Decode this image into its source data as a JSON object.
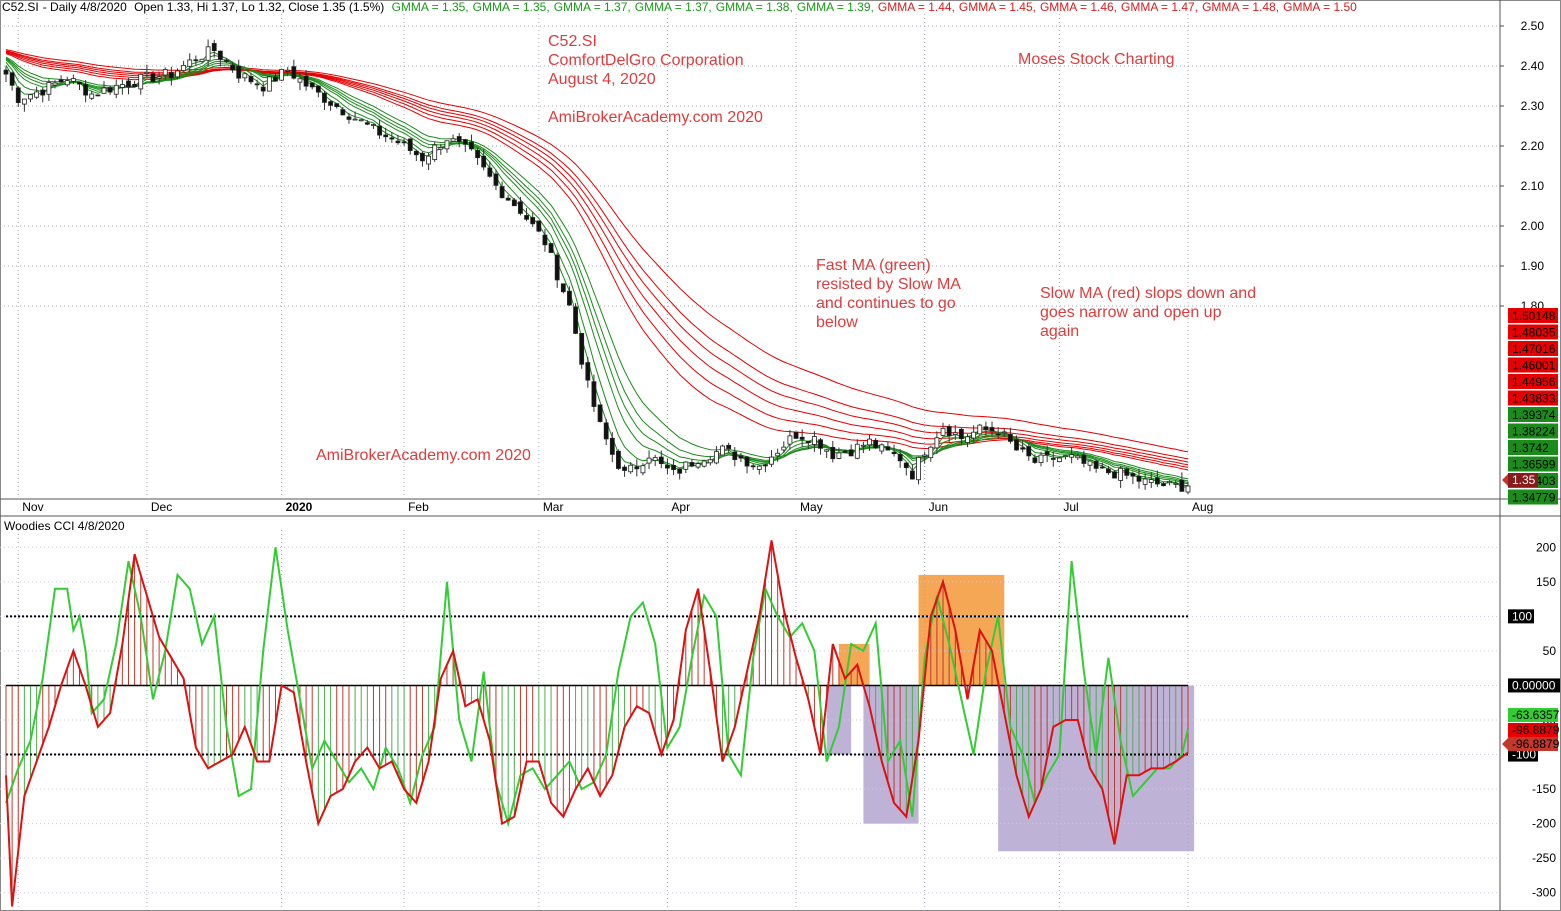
{
  "header": {
    "ticker": "C52.SI",
    "period": "Daily 4/8/2020",
    "ohlc": "Open 1.33, Hi 1.37, Lo 1.32, Close 1.35 (1.5%)",
    "gmma": [
      {
        "text": "GMMA = 1.35,",
        "color": "#1a9a1a"
      },
      {
        "text": "GMMA = 1.35,",
        "color": "#1a9a1a"
      },
      {
        "text": "GMMA = 1.37,",
        "color": "#1a9a1a"
      },
      {
        "text": "GMMA = 1.37,",
        "color": "#1a9a1a"
      },
      {
        "text": "GMMA = 1.38,",
        "color": "#1a9a1a"
      },
      {
        "text": "GMMA = 1.39,",
        "color": "#1a9a1a"
      },
      {
        "text": "GMMA = 1.44,",
        "color": "#d42020"
      },
      {
        "text": "GMMA = 1.45,",
        "color": "#d42020"
      },
      {
        "text": "GMMA = 1.46,",
        "color": "#d42020"
      },
      {
        "text": "GMMA = 1.47,",
        "color": "#d42020"
      },
      {
        "text": "GMMA = 1.48,",
        "color": "#d42020"
      },
      {
        "text": "GMMA = 1.50",
        "color": "#d42020"
      }
    ]
  },
  "annotations": {
    "title_block": [
      "C52.SI",
      "ComfortDelGro Corporation",
      "August 4, 2020"
    ],
    "site1": "AmiBrokerAcademy.com  2020",
    "site2": "AmiBrokerAcademy.com  2020",
    "brand": "Moses Stock Charting",
    "fast_ma": [
      "Fast MA (green)",
      "resisted by Slow MA",
      "and continues to go",
      "below"
    ],
    "slow_ma": [
      "Slow MA (red) slops down and",
      "goes narrow and open up",
      "again"
    ]
  },
  "cci_title": "Woodies CCI  4/8/2020",
  "chart_data": {
    "type": "candlestick",
    "price_axis": {
      "ticks": [
        1.8,
        1.9,
        2.0,
        2.1,
        2.2,
        2.3,
        2.4,
        2.5
      ],
      "labels": [
        "1.80",
        "1.90",
        "2.00",
        "2.10",
        "2.20",
        "2.30",
        "2.40",
        "2.50"
      ],
      "range": [
        1.32,
        2.53
      ]
    },
    "months": [
      "Nov",
      "Dec",
      "2020",
      "Feb",
      "Mar",
      "Apr",
      "May",
      "Jun",
      "Jul",
      "Aug"
    ],
    "month_index": [
      2,
      23,
      45,
      65,
      87,
      108,
      129,
      150,
      172,
      193
    ],
    "n_bars": 194,
    "close_path": [
      [
        0,
        2.38
      ],
      [
        2,
        2.32
      ],
      [
        6,
        2.34
      ],
      [
        10,
        2.37
      ],
      [
        14,
        2.33
      ],
      [
        18,
        2.35
      ],
      [
        23,
        2.37
      ],
      [
        27,
        2.38
      ],
      [
        31,
        2.42
      ],
      [
        34,
        2.44
      ],
      [
        38,
        2.38
      ],
      [
        42,
        2.35
      ],
      [
        46,
        2.39
      ],
      [
        50,
        2.34
      ],
      [
        55,
        2.29
      ],
      [
        60,
        2.24
      ],
      [
        64,
        2.21
      ],
      [
        68,
        2.17
      ],
      [
        72,
        2.22
      ],
      [
        76,
        2.18
      ],
      [
        80,
        2.1
      ],
      [
        84,
        2.04
      ],
      [
        88,
        1.96
      ],
      [
        90,
        1.88
      ],
      [
        92,
        1.8
      ],
      [
        95,
        1.6
      ],
      [
        97,
        1.5
      ],
      [
        99,
        1.43
      ],
      [
        101,
        1.38
      ],
      [
        103,
        1.4
      ],
      [
        105,
        1.43
      ],
      [
        107,
        1.4
      ],
      [
        109,
        1.38
      ],
      [
        113,
        1.42
      ],
      [
        117,
        1.44
      ],
      [
        120,
        1.42
      ],
      [
        123,
        1.4
      ],
      [
        126,
        1.44
      ],
      [
        129,
        1.48
      ],
      [
        132,
        1.47
      ],
      [
        135,
        1.43
      ],
      [
        138,
        1.44
      ],
      [
        141,
        1.46
      ],
      [
        143,
        1.44
      ],
      [
        146,
        1.42
      ],
      [
        148,
        1.38
      ],
      [
        150,
        1.44
      ],
      [
        153,
        1.5
      ],
      [
        156,
        1.47
      ],
      [
        159,
        1.49
      ],
      [
        162,
        1.49
      ],
      [
        165,
        1.44
      ],
      [
        168,
        1.41
      ],
      [
        171,
        1.42
      ],
      [
        174,
        1.42
      ],
      [
        178,
        1.39
      ],
      [
        182,
        1.38
      ],
      [
        186,
        1.36
      ],
      [
        190,
        1.35
      ],
      [
        193,
        1.35
      ]
    ],
    "last_close_label": "1.35",
    "gmma_last": [
      {
        "label": "1.50148",
        "value": 1.50148,
        "color": "#e60000"
      },
      {
        "label": "1.48035",
        "value": 1.48035,
        "color": "#e60000"
      },
      {
        "label": "1.47016",
        "value": 1.47016,
        "color": "#e60000"
      },
      {
        "label": "1.46001",
        "value": 1.46001,
        "color": "#e60000"
      },
      {
        "label": "1.44956",
        "value": 1.44956,
        "color": "#e60000"
      },
      {
        "label": "1.43833",
        "value": 1.43833,
        "color": "#e60000"
      },
      {
        "label": "1.39374",
        "value": 1.39374,
        "color": "#1a8c1a"
      },
      {
        "label": "1.38224",
        "value": 1.38224,
        "color": "#1a8c1a"
      },
      {
        "label": "1.3742",
        "value": 1.3742,
        "color": "#1a8c1a"
      },
      {
        "label": "1.36599",
        "value": 1.36599,
        "color": "#1a8c1a"
      },
      {
        "label": "1.35403",
        "value": 1.35403,
        "color": "#1a8c1a"
      },
      {
        "label": "1.34779",
        "value": 1.34779,
        "color": "#1a8c1a"
      }
    ],
    "gmma_colors": {
      "fast": "#1a8c1a",
      "slow": "#e60000",
      "cross_zone": "#e60000"
    },
    "cci_axis": {
      "ticks": [
        -300,
        -250,
        -200,
        -150,
        -100,
        -50,
        0,
        50,
        100,
        150,
        200
      ],
      "labels": [
        "-300",
        "-250",
        "-200",
        "-150",
        "-100",
        "-50",
        "0",
        "50",
        "100",
        "150",
        "200"
      ],
      "range": [
        -325,
        225
      ]
    },
    "cci_levels": {
      "upper": 100,
      "upper_label": "100",
      "zero_label": "0.00000",
      "lower": -100,
      "lower_label": "-100"
    },
    "cci_last": {
      "fast_label": "-63.6357",
      "slow_label1": "-96.8879",
      "slow_label2": "-96.8879"
    },
    "cci_fast_points": [
      [
        0,
        -170
      ],
      [
        2,
        -120
      ],
      [
        4,
        -80
      ],
      [
        6,
        10
      ],
      [
        8,
        140
      ],
      [
        10,
        140
      ],
      [
        11,
        80
      ],
      [
        12,
        100
      ],
      [
        13,
        50
      ],
      [
        14,
        -40
      ],
      [
        16,
        -20
      ],
      [
        18,
        60
      ],
      [
        20,
        180
      ],
      [
        22,
        100
      ],
      [
        24,
        -20
      ],
      [
        26,
        50
      ],
      [
        28,
        160
      ],
      [
        30,
        140
      ],
      [
        32,
        60
      ],
      [
        34,
        100
      ],
      [
        36,
        -60
      ],
      [
        38,
        -160
      ],
      [
        40,
        -150
      ],
      [
        42,
        50
      ],
      [
        44,
        200
      ],
      [
        46,
        80
      ],
      [
        48,
        -20
      ],
      [
        50,
        -120
      ],
      [
        52,
        -80
      ],
      [
        54,
        -110
      ],
      [
        56,
        -140
      ],
      [
        58,
        -120
      ],
      [
        60,
        -150
      ],
      [
        62,
        -90
      ],
      [
        64,
        -120
      ],
      [
        66,
        -170
      ],
      [
        68,
        -100
      ],
      [
        70,
        -60
      ],
      [
        72,
        150
      ],
      [
        74,
        -50
      ],
      [
        76,
        -110
      ],
      [
        78,
        20
      ],
      [
        80,
        -140
      ],
      [
        82,
        -200
      ],
      [
        84,
        -130
      ],
      [
        86,
        -120
      ],
      [
        88,
        -150
      ],
      [
        90,
        -130
      ],
      [
        92,
        -110
      ],
      [
        94,
        -150
      ],
      [
        96,
        -140
      ],
      [
        98,
        -100
      ],
      [
        100,
        20
      ],
      [
        102,
        100
      ],
      [
        104,
        120
      ],
      [
        106,
        60
      ],
      [
        108,
        -90
      ],
      [
        110,
        -60
      ],
      [
        112,
        40
      ],
      [
        114,
        130
      ],
      [
        116,
        100
      ],
      [
        118,
        -100
      ],
      [
        120,
        -130
      ],
      [
        122,
        40
      ],
      [
        124,
        140
      ],
      [
        126,
        100
      ],
      [
        128,
        70
      ],
      [
        130,
        90
      ],
      [
        132,
        50
      ],
      [
        134,
        -110
      ],
      [
        136,
        -60
      ],
      [
        138,
        60
      ],
      [
        140,
        50
      ],
      [
        142,
        90
      ],
      [
        144,
        -110
      ],
      [
        146,
        -80
      ],
      [
        148,
        -190
      ],
      [
        150,
        40
      ],
      [
        152,
        130
      ],
      [
        154,
        60
      ],
      [
        156,
        -20
      ],
      [
        158,
        -100
      ],
      [
        160,
        20
      ],
      [
        162,
        100
      ],
      [
        164,
        -60
      ],
      [
        166,
        -100
      ],
      [
        168,
        -170
      ],
      [
        170,
        -130
      ],
      [
        172,
        -100
      ],
      [
        174,
        180
      ],
      [
        176,
        20
      ],
      [
        178,
        -100
      ],
      [
        180,
        40
      ],
      [
        182,
        -80
      ],
      [
        184,
        -160
      ],
      [
        186,
        -140
      ],
      [
        188,
        -120
      ],
      [
        190,
        -120
      ],
      [
        192,
        -100
      ],
      [
        193,
        -63
      ]
    ],
    "cci_slow_points": [
      [
        0,
        -130
      ],
      [
        1,
        -320
      ],
      [
        3,
        -160
      ],
      [
        5,
        -110
      ],
      [
        7,
        -60
      ],
      [
        9,
        0
      ],
      [
        11,
        50
      ],
      [
        13,
        0
      ],
      [
        15,
        -60
      ],
      [
        17,
        -40
      ],
      [
        19,
        60
      ],
      [
        21,
        190
      ],
      [
        23,
        130
      ],
      [
        25,
        70
      ],
      [
        27,
        40
      ],
      [
        29,
        10
      ],
      [
        31,
        -90
      ],
      [
        33,
        -120
      ],
      [
        35,
        -110
      ],
      [
        37,
        -100
      ],
      [
        39,
        -60
      ],
      [
        41,
        -110
      ],
      [
        43,
        -110
      ],
      [
        45,
        0
      ],
      [
        47,
        -10
      ],
      [
        49,
        -110
      ],
      [
        51,
        -200
      ],
      [
        53,
        -160
      ],
      [
        55,
        -150
      ],
      [
        57,
        -110
      ],
      [
        59,
        -90
      ],
      [
        61,
        -120
      ],
      [
        63,
        -110
      ],
      [
        65,
        -150
      ],
      [
        67,
        -170
      ],
      [
        69,
        -110
      ],
      [
        71,
        10
      ],
      [
        73,
        50
      ],
      [
        75,
        -30
      ],
      [
        77,
        -20
      ],
      [
        79,
        -80
      ],
      [
        81,
        -200
      ],
      [
        83,
        -190
      ],
      [
        85,
        -110
      ],
      [
        87,
        -110
      ],
      [
        89,
        -170
      ],
      [
        91,
        -190
      ],
      [
        93,
        -150
      ],
      [
        95,
        -120
      ],
      [
        97,
        -160
      ],
      [
        99,
        -130
      ],
      [
        101,
        -60
      ],
      [
        103,
        -30
      ],
      [
        105,
        -40
      ],
      [
        107,
        -100
      ],
      [
        109,
        -50
      ],
      [
        111,
        80
      ],
      [
        113,
        140
      ],
      [
        115,
        20
      ],
      [
        117,
        -110
      ],
      [
        119,
        -60
      ],
      [
        121,
        20
      ],
      [
        123,
        100
      ],
      [
        125,
        210
      ],
      [
        127,
        110
      ],
      [
        129,
        40
      ],
      [
        131,
        -20
      ],
      [
        133,
        -100
      ],
      [
        135,
        60
      ],
      [
        137,
        10
      ],
      [
        139,
        30
      ],
      [
        141,
        -30
      ],
      [
        143,
        -110
      ],
      [
        145,
        -170
      ],
      [
        147,
        -190
      ],
      [
        149,
        -80
      ],
      [
        151,
        100
      ],
      [
        153,
        150
      ],
      [
        155,
        80
      ],
      [
        157,
        -20
      ],
      [
        159,
        80
      ],
      [
        161,
        50
      ],
      [
        163,
        -40
      ],
      [
        165,
        -130
      ],
      [
        167,
        -190
      ],
      [
        169,
        -150
      ],
      [
        171,
        -60
      ],
      [
        173,
        -50
      ],
      [
        175,
        -50
      ],
      [
        177,
        -120
      ],
      [
        179,
        -150
      ],
      [
        181,
        -230
      ],
      [
        183,
        -130
      ],
      [
        185,
        -130
      ],
      [
        187,
        -120
      ],
      [
        189,
        -120
      ],
      [
        191,
        -110
      ],
      [
        193,
        -97
      ]
    ],
    "zones": [
      {
        "from": 136,
        "to": 141,
        "y1": 60,
        "y2": 0,
        "color": "#f28a1e"
      },
      {
        "from": 134,
        "to": 138,
        "y1": 0,
        "y2": -100,
        "color": "#a89ac8"
      },
      {
        "from": 140,
        "to": 149,
        "y1": 0,
        "y2": -200,
        "color": "#a89ac8"
      },
      {
        "from": 149,
        "to": 163,
        "y1": 160,
        "y2": 0,
        "color": "#f28a1e"
      },
      {
        "from": 162,
        "to": 194,
        "y1": 0,
        "y2": -240,
        "color": "#a89ac8"
      }
    ]
  }
}
